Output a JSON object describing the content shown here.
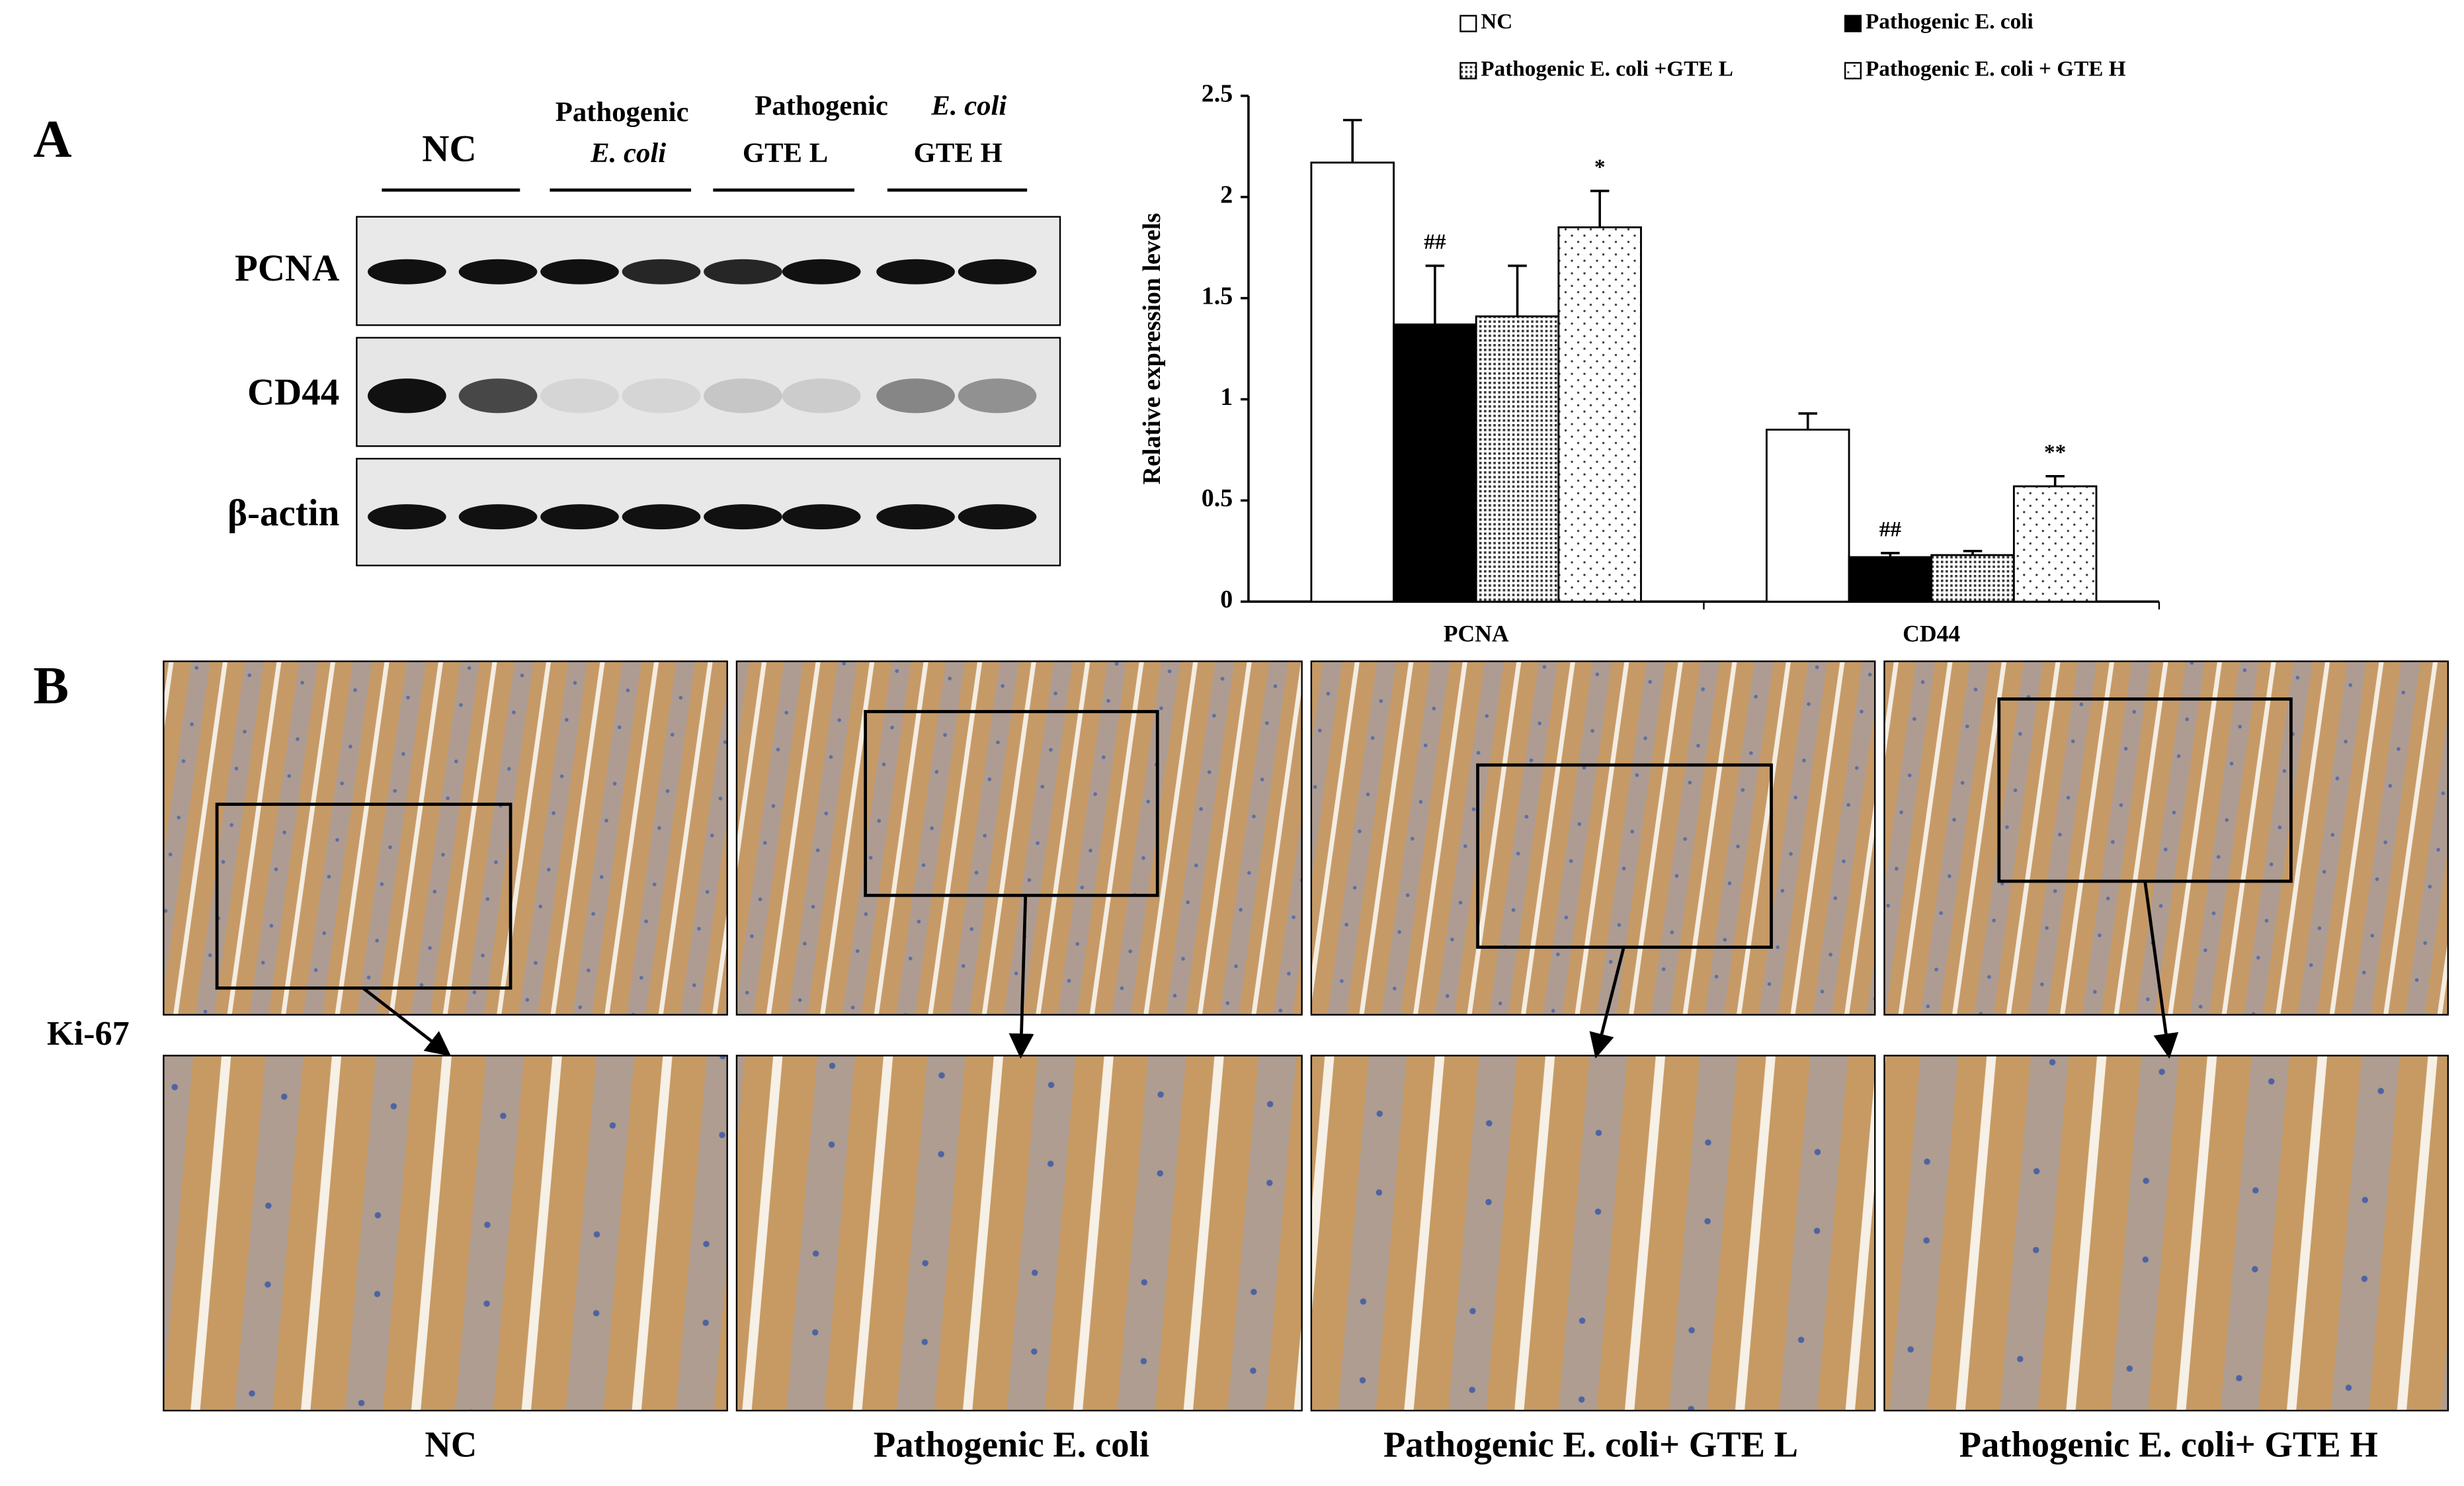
{
  "panel_labels": [
    "A",
    "B"
  ],
  "blot": {
    "groups": [
      {
        "lines": [
          "NC"
        ]
      },
      {
        "lines": [
          "Pathogenic",
          "E. coli"
        ]
      },
      {
        "lines": [
          "Pathogenic",
          "GTE L"
        ]
      },
      {
        "lines": [
          "E. coli",
          "GTE H"
        ]
      }
    ],
    "rows": [
      "PCNA",
      "CD44",
      "β-actin"
    ]
  },
  "chart_data": {
    "type": "bar",
    "categories": [
      "PCNA",
      "CD44"
    ],
    "ylabel": "Relative expression levels",
    "ylim": [
      0,
      2.5
    ],
    "yticks": [
      0,
      0.5,
      1,
      1.5,
      2,
      2.5
    ],
    "series": [
      {
        "name": "NC",
        "color": "#ffffff",
        "hatch": "none",
        "values": [
          2.17,
          0.85
        ],
        "errors": [
          0.21,
          0.08
        ],
        "annotations": [
          null,
          null
        ]
      },
      {
        "name": "Pathogenic E. coli",
        "color": "#000000",
        "hatch": "none",
        "values": [
          1.37,
          0.22
        ],
        "errors": [
          0.29,
          0.02
        ],
        "annotations": [
          "##",
          "##"
        ]
      },
      {
        "name": "Pathogenic E. coli +GTE L",
        "color": "#ffffff",
        "hatch": "dense",
        "values": [
          1.41,
          0.23
        ],
        "errors": [
          0.25,
          0.02
        ],
        "annotations": [
          null,
          null
        ]
      },
      {
        "name": "Pathogenic E. coli + GTE H",
        "color": "#ffffff",
        "hatch": "sparse",
        "values": [
          1.85,
          0.57
        ],
        "errors": [
          0.18,
          0.05
        ],
        "annotations": [
          "*",
          "**"
        ]
      }
    ]
  },
  "histology": {
    "stain": "Ki-67",
    "labels": [
      "NC",
      "Pathogenic E. coli",
      "Pathogenic E. coli+ GTE L",
      "Pathogenic E. coli+ GTE H"
    ]
  }
}
